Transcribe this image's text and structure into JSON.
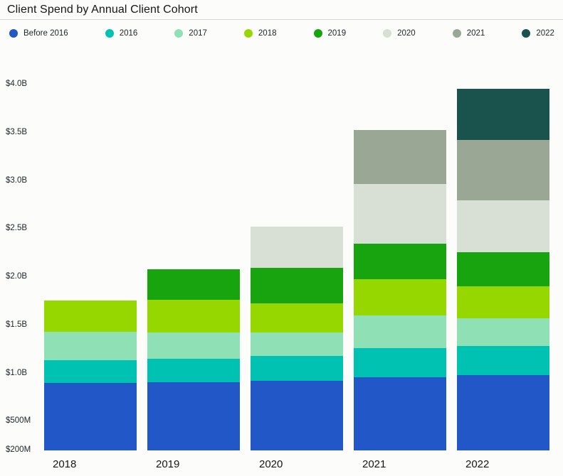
{
  "title": "Client Spend by Annual Client Cohort",
  "colors": {
    "background": "#fcfcfa",
    "divider": "#d4d4d4",
    "text": "#21272a",
    "title_text": "#161616"
  },
  "chart_data": {
    "type": "bar",
    "stacked": true,
    "title": "Client Spend by Annual Client Cohort",
    "values_unit": "USD millions",
    "legend_position": "top",
    "grid": false,
    "categories": [
      "2018",
      "2019",
      "2020",
      "2021",
      "2022"
    ],
    "series": [
      {
        "name": "Before 2016",
        "color": "#2257c7",
        "values": [
          900,
          910,
          920,
          960,
          985
        ]
      },
      {
        "name": "2016",
        "color": "#00c2b3",
        "values": [
          240,
          245,
          260,
          305,
          300
        ]
      },
      {
        "name": "2017",
        "color": "#90e0b5",
        "values": [
          290,
          270,
          245,
          340,
          290
        ]
      },
      {
        "name": "2018",
        "color": "#97d700",
        "values": [
          330,
          340,
          300,
          370,
          330
        ]
      },
      {
        "name": "2019",
        "color": "#17a40e",
        "values": [
          0,
          320,
          370,
          370,
          355
        ]
      },
      {
        "name": "2020",
        "color": "#d8dfd5",
        "values": [
          0,
          0,
          430,
          625,
          540
        ]
      },
      {
        "name": "2021",
        "color": "#9aa795",
        "values": [
          0,
          0,
          0,
          560,
          625
        ]
      },
      {
        "name": "2022",
        "color": "#1a524d",
        "values": [
          0,
          0,
          0,
          0,
          530
        ]
      }
    ],
    "totals_drawn": [
      1760,
      2085,
      2525,
      3530,
      3955
    ],
    "yticks": [
      {
        "label": "$200M",
        "value": 200
      },
      {
        "label": "$500M",
        "value": 500
      },
      {
        "label": "$1.0B",
        "value": 1000
      },
      {
        "label": "$1.5B",
        "value": 1500
      },
      {
        "label": "$2.0B",
        "value": 2000
      },
      {
        "label": "$2.5B",
        "value": 2500
      },
      {
        "label": "$3.0B",
        "value": 3000
      },
      {
        "label": "$3.5B",
        "value": 3500
      },
      {
        "label": "$4.0B",
        "value": 4000
      }
    ],
    "ylim": [
      200,
      4100
    ]
  }
}
